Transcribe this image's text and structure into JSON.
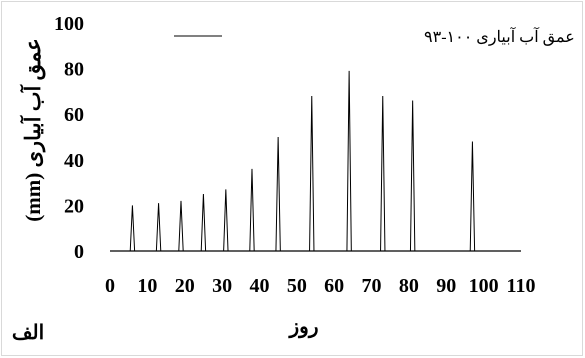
{
  "chart_data": {
    "type": "line",
    "ylabel": "عمق آب آبیاری (mm)",
    "xlabel": "روز",
    "panel_label": "الف",
    "xlim": [
      0,
      110
    ],
    "ylim": [
      0,
      100
    ],
    "x_ticks": [
      "0",
      "10",
      "20",
      "30",
      "40",
      "50",
      "60",
      "70",
      "80",
      "90",
      "100",
      "110"
    ],
    "y_ticks": [
      "0",
      "20",
      "40",
      "60",
      "80",
      "100"
    ],
    "grid": false,
    "legend_position": "top-center",
    "series": [
      {
        "name": "عمق آب آبیاری ۱۰۰-۹۳",
        "color": "#000000",
        "events": [
          {
            "day": 6,
            "value": 20
          },
          {
            "day": 13,
            "value": 21
          },
          {
            "day": 19,
            "value": 22
          },
          {
            "day": 25,
            "value": 25
          },
          {
            "day": 31,
            "value": 27
          },
          {
            "day": 38,
            "value": 36
          },
          {
            "day": 45,
            "value": 50
          },
          {
            "day": 54,
            "value": 68
          },
          {
            "day": 64,
            "value": 79
          },
          {
            "day": 73,
            "value": 68
          },
          {
            "day": 81,
            "value": 66
          },
          {
            "day": 97,
            "value": 48
          }
        ]
      }
    ]
  }
}
